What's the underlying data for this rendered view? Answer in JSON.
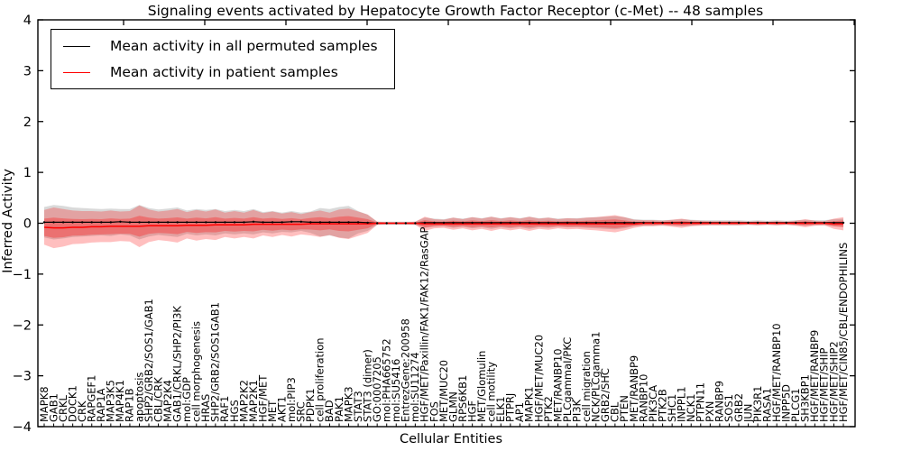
{
  "chart_data": {
    "type": "line",
    "title": "Signaling events activated by Hepatocyte Growth Factor Receptor (c-Met) -- 48 samples",
    "xlabel": "Cellular Entities",
    "ylabel": "Inferred Activity",
    "ylim": [
      -4,
      4
    ],
    "yticks": [
      4,
      3,
      2,
      1,
      0,
      -1,
      -2,
      -3,
      -4
    ],
    "legend_position": "upper left",
    "legend": [
      {
        "label": "Mean activity in all permuted samples",
        "color": "#000000"
      },
      {
        "label": "Mean activity in patient samples",
        "color": "#ff0000"
      }
    ],
    "colors": {
      "permuted_line": "#000000",
      "patient_line": "#ff0000",
      "patient_band_outer": "rgba(255,0,0,0.25)",
      "patient_band_inner": "rgba(255,0,0,0.30)",
      "permuted_band": "rgba(0,0,0,0.15)",
      "axis": "#000000",
      "text": "#000000"
    },
    "categories": [
      "MAPK8",
      "GAB1",
      "CRKL",
      "DOCK1",
      "CRK",
      "RAPGEF1",
      "RAP1A",
      "MAP3K5",
      "MAP4K1",
      "RAP1B",
      "apoptosis",
      "SHP2/GRB2/SOS1/GAB1",
      "CBL/CRK",
      "MAP2K4",
      "GAB1/CRKL/SHP2/PI3K",
      "mol:GDP",
      "cell morphogenesis",
      "HRAS",
      "SHP2/GRB2/SOS1GAB1",
      "RAF1",
      "HGS",
      "MAP2K2",
      "MAP2K1",
      "HGF/MET",
      "MET",
      "AKT1",
      "mol:PIP3",
      "SRC",
      "PDPK1",
      "cell proliferation",
      "BAD",
      "PAK1",
      "MAPK3",
      "STAT3",
      "STAT3 (dimer)",
      "GO:0007205",
      "mol:PHA665752",
      "mol:SU5416",
      "EntrezGene:200958",
      "mol:SU11274",
      "HGF/MET/Paxillin/FAK1/FAK12/RasGAP",
      "FOS",
      "MET/MUC20",
      "GLMN",
      "RPS6KB1",
      "HGF",
      "MET/Glomulin",
      "cell motility",
      "ELK1",
      "PTPRJ",
      "AP1",
      "MAPK1",
      "HGF/MET/MUC20",
      "PTK2",
      "MET/RANBP10",
      "PLCgammaI/PKC",
      "PI3K",
      "cell migration",
      "NCK/PLCgamma1",
      "GRB2/SHC",
      "CBL",
      "PTEN",
      "MET/RANBP9",
      "RANBP10",
      "PIK3CA",
      "PTK2B",
      "SHC1",
      "INPPL1",
      "NCK1",
      "PTPN11",
      "PXN",
      "RANBP9",
      "SOS1",
      "GRB2",
      "JUN",
      "PIK3R1",
      "RASA1",
      "HGF/MET/RANBP10",
      "INPP5D",
      "PLCG1",
      "SH3KBP1",
      "HGF/MET/RANBP9",
      "HGF/MET/SHIP",
      "HGF/MET/SHIP2",
      "HGF/MET/CIN85/CBL/ENDOPHILINS"
    ],
    "series": [
      {
        "name": "Mean activity in all permuted samples",
        "color": "#000000",
        "values": [
          0.02,
          0.02,
          0.02,
          0.02,
          0.02,
          0.02,
          0.02,
          0.02,
          0.03,
          0.02,
          0.02,
          0.02,
          0.02,
          0.02,
          0.02,
          0.02,
          0.02,
          0.02,
          0.02,
          0.02,
          0.02,
          0.02,
          0.03,
          0.02,
          0.02,
          0.02,
          0.03,
          0.03,
          0.02,
          0.02,
          0.02,
          0.02,
          0.02,
          0.02,
          0.01,
          0,
          0,
          0,
          0,
          0,
          0.01,
          0.01,
          0.01,
          0.01,
          0.01,
          0.01,
          0.01,
          0.01,
          0.01,
          0.01,
          0.01,
          0.01,
          0.01,
          0.01,
          0.01,
          0.01,
          0.01,
          0.01,
          0.01,
          0.01,
          0.01,
          0.01,
          0.01,
          0.01,
          0.01,
          0.01,
          0.01,
          0.01,
          0.01,
          0.01,
          0.01,
          0.01,
          0.01,
          0.01,
          0.01,
          0.01,
          0.01,
          0.01,
          0.01,
          0.01,
          0.01,
          0.01,
          0.01,
          0.01,
          0.01
        ]
      },
      {
        "name": "Mean activity in patient samples",
        "color": "#ff0000",
        "values": [
          -0.08,
          -0.09,
          -0.09,
          -0.08,
          -0.08,
          -0.07,
          -0.07,
          -0.06,
          -0.06,
          -0.06,
          -0.06,
          -0.05,
          -0.05,
          -0.05,
          -0.05,
          -0.04,
          -0.04,
          -0.04,
          -0.03,
          -0.03,
          -0.03,
          -0.03,
          -0.02,
          -0.02,
          -0.02,
          -0.02,
          -0.02,
          -0.02,
          -0.01,
          -0.01,
          -0.01,
          -0.01,
          -0.01,
          -0.01,
          -0.01,
          0,
          0,
          0,
          0,
          0,
          -0.01,
          -0.01,
          -0.01,
          -0.01,
          -0.01,
          -0.01,
          -0.01,
          -0.01,
          -0.01,
          -0.01,
          -0.01,
          -0.01,
          -0.01,
          -0.01,
          -0.01,
          -0.01,
          -0.01,
          -0.01,
          -0.01,
          -0.01,
          -0.01,
          -0.01,
          -0.01,
          0,
          0,
          0,
          0,
          0,
          0,
          0,
          0,
          0,
          0,
          0,
          0,
          0,
          0,
          0,
          0,
          0,
          0,
          0,
          0,
          -0.01,
          -0.01
        ]
      }
    ],
    "bands": {
      "inner_scale": 0.5,
      "patient_spread": [
        0.34,
        0.4,
        0.37,
        0.33,
        0.32,
        0.31,
        0.3,
        0.31,
        0.29,
        0.3,
        0.41,
        0.32,
        0.28,
        0.3,
        0.33,
        0.26,
        0.3,
        0.27,
        0.3,
        0.24,
        0.27,
        0.24,
        0.28,
        0.22,
        0.25,
        0.21,
        0.24,
        0.2,
        0.23,
        0.26,
        0.22,
        0.28,
        0.3,
        0.24,
        0.18,
        0.03,
        0.02,
        0.02,
        0.02,
        0.03,
        0.14,
        0.09,
        0.08,
        0.12,
        0.09,
        0.13,
        0.1,
        0.14,
        0.1,
        0.13,
        0.1,
        0.14,
        0.1,
        0.12,
        0.09,
        0.11,
        0.1,
        0.12,
        0.13,
        0.15,
        0.17,
        0.13,
        0.08,
        0.06,
        0.06,
        0.05,
        0.07,
        0.09,
        0.06,
        0.05,
        0.04,
        0.04,
        0.04,
        0.04,
        0.03,
        0.04,
        0.03,
        0.04,
        0.03,
        0.05,
        0.08,
        0.05,
        0.04,
        0.1,
        0.13
      ],
      "permuted_spread": [
        0.3,
        0.34,
        0.32,
        0.29,
        0.28,
        0.27,
        0.26,
        0.27,
        0.25,
        0.26,
        0.34,
        0.28,
        0.25,
        0.27,
        0.29,
        0.23,
        0.26,
        0.24,
        0.26,
        0.22,
        0.24,
        0.22,
        0.25,
        0.2,
        0.22,
        0.19,
        0.21,
        0.18,
        0.21,
        0.28,
        0.26,
        0.3,
        0.32,
        0.22,
        0.16,
        0.03,
        0.03,
        0.03,
        0.03,
        0.03,
        0.1,
        0.08,
        0.07,
        0.1,
        0.08,
        0.11,
        0.09,
        0.12,
        0.09,
        0.11,
        0.09,
        0.12,
        0.09,
        0.1,
        0.08,
        0.09,
        0.09,
        0.1,
        0.11,
        0.12,
        0.13,
        0.11,
        0.07,
        0.06,
        0.06,
        0.05,
        0.06,
        0.07,
        0.06,
        0.05,
        0.05,
        0.05,
        0.05,
        0.05,
        0.04,
        0.05,
        0.04,
        0.05,
        0.04,
        0.05,
        0.06,
        0.05,
        0.05,
        0.07,
        0.08
      ]
    }
  }
}
